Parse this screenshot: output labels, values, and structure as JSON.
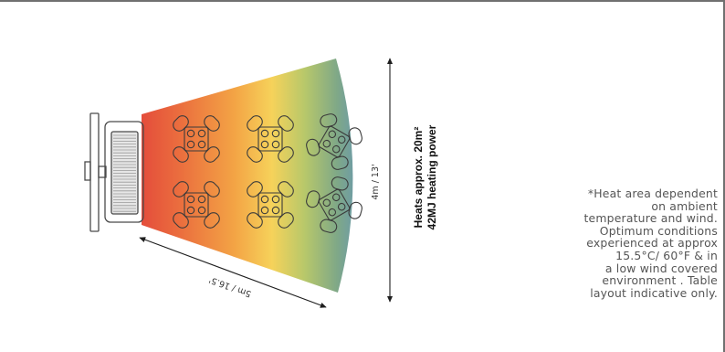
{
  "diagram": {
    "heat_area_title": "Heats approx. 20m²",
    "heating_power": "42MJ heating power",
    "width_label": "4m / 13'",
    "length_label": "5m / 16.5'",
    "gradient_colors": [
      "#e44d3b",
      "#eb6f3e",
      "#f3a445",
      "#f6d25a",
      "#b8c86a",
      "#7fa887",
      "#5b8fc7"
    ]
  },
  "note": {
    "text": "*Heat area dependent\non ambient\ntemperature and wind.\nOptimum conditions\nexperienced at approx\n15.5°C/ 60°F  & in\na low wind covered\nenvironment . Table\nlayout indicative only."
  }
}
